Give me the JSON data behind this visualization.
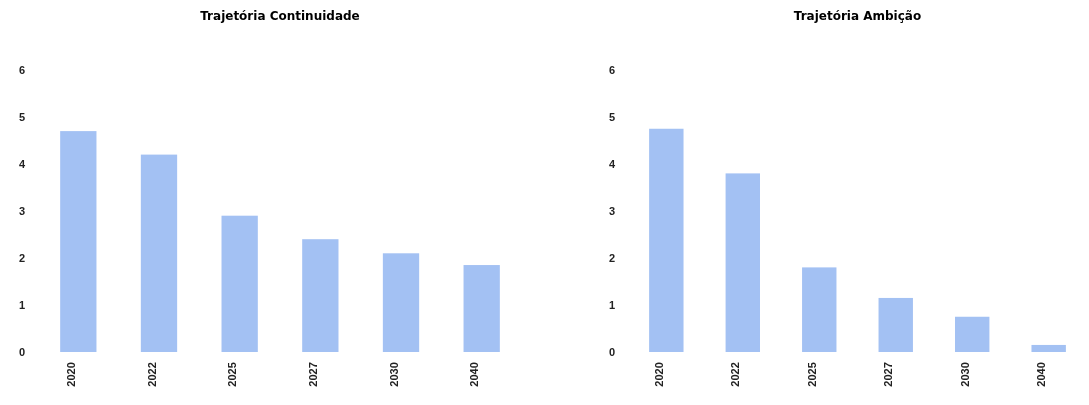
{
  "chart_data": [
    {
      "type": "bar",
      "title": "Trajetória Continuidade",
      "categories": [
        "2020",
        "2022",
        "2025",
        "2027",
        "2030",
        "2040"
      ],
      "values": [
        4.7,
        4.2,
        2.9,
        2.4,
        2.1,
        1.85
      ],
      "color": "#a3c1f3",
      "ylim": [
        0,
        6
      ],
      "yticks": [
        0,
        1,
        2,
        3,
        4,
        5,
        6
      ],
      "grid": false
    },
    {
      "type": "bar",
      "title": "Trajetória Ambição",
      "categories": [
        "2020",
        "2022",
        "2025",
        "2027",
        "2030",
        "2040"
      ],
      "values": [
        4.75,
        3.8,
        1.8,
        1.15,
        0.75,
        0.15
      ],
      "color": "#a3c1f3",
      "ylim": [
        0,
        6
      ],
      "yticks": [
        0,
        1,
        2,
        3,
        4,
        5,
        6
      ],
      "grid": false
    }
  ]
}
